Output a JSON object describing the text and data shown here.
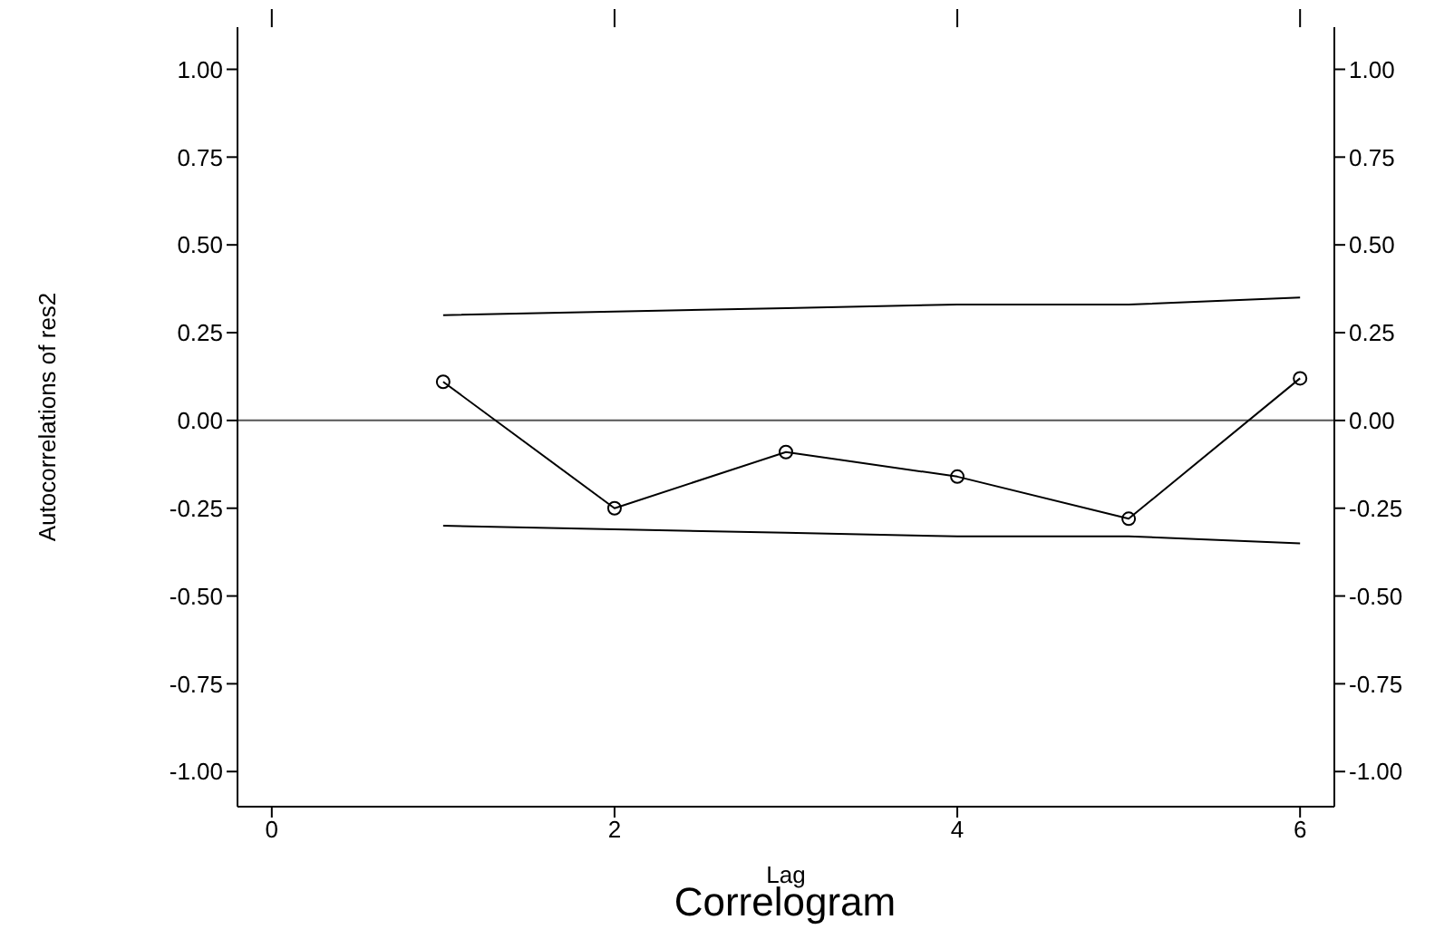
{
  "chart_data": {
    "type": "line",
    "title": "Correlogram",
    "xlabel": "Lag",
    "ylabel": "Autocorrelations of res2",
    "xlim": [
      -0.2,
      6.2
    ],
    "xticks": [
      0,
      2,
      4,
      6
    ],
    "ylim": [
      -1.1,
      1.12
    ],
    "yticks": [
      {
        "value": -1,
        "label": "-1.00"
      },
      {
        "value": -0.75,
        "label": "-0.75"
      },
      {
        "value": -0.5,
        "label": "-0.50"
      },
      {
        "value": -0.25,
        "label": "-0.25"
      },
      {
        "value": 0,
        "label": "0.00"
      },
      {
        "value": 0.25,
        "label": "0.25"
      },
      {
        "value": 0.5,
        "label": "0.50"
      },
      {
        "value": 0.75,
        "label": "0.75"
      },
      {
        "value": 1,
        "label": "1.00"
      }
    ],
    "y2lim": [
      -1.1,
      1.12
    ],
    "y2ticks": [
      {
        "value": -1,
        "label": "-1.00"
      },
      {
        "value": -0.75,
        "label": "-0.75"
      },
      {
        "value": -0.5,
        "label": "-0.50"
      },
      {
        "value": -0.25,
        "label": "-0.25"
      },
      {
        "value": 0,
        "label": "0.00"
      },
      {
        "value": 0.25,
        "label": "0.25"
      },
      {
        "value": 0.5,
        "label": "0.50"
      },
      {
        "value": 0.75,
        "label": "0.75"
      },
      {
        "value": 1,
        "label": "1.00"
      }
    ],
    "series": [
      {
        "color": "#000000",
        "marker": "circle",
        "x": [
          1,
          2,
          3,
          4,
          5,
          6
        ],
        "values": [
          0.11,
          -0.25,
          -0.09,
          -0.16,
          -0.28,
          0.12
        ]
      },
      {
        "color": "#000000",
        "marker": "none",
        "x": [
          1,
          2,
          3,
          4,
          5,
          6
        ],
        "values": [
          0.3,
          0.31,
          0.32,
          0.33,
          0.33,
          0.35
        ]
      },
      {
        "color": "#000000",
        "marker": "none",
        "x": [
          1,
          2,
          3,
          4,
          5,
          6
        ],
        "values": [
          -0.3,
          -0.31,
          -0.32,
          -0.33,
          -0.33,
          -0.35
        ]
      }
    ],
    "ref_lines": [
      {
        "axis": "y",
        "value": 0,
        "color": "#555555"
      }
    ],
    "grid": false
  }
}
